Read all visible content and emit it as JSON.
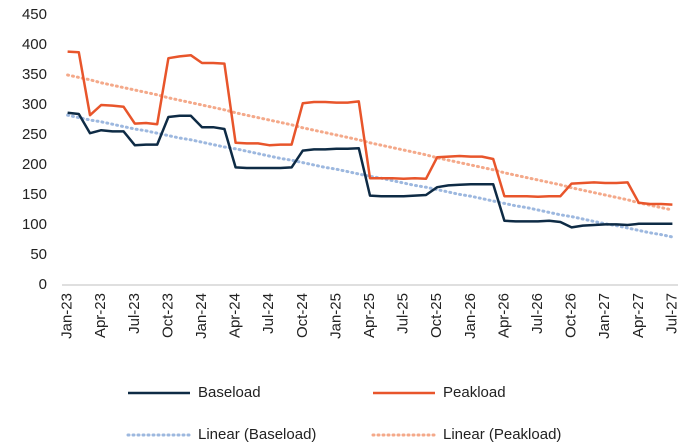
{
  "chart_data": {
    "type": "line",
    "categories": [
      "Jan-23",
      null,
      null,
      "Apr-23",
      null,
      null,
      "Jul-23",
      null,
      null,
      "Oct-23",
      null,
      null,
      "Jan-24",
      null,
      null,
      "Apr-24",
      null,
      null,
      "Jul-24",
      null,
      null,
      "Oct-24",
      null,
      null,
      "Jan-25",
      null,
      null,
      "Apr-25",
      null,
      null,
      "Jul-25",
      null,
      null,
      "Oct-25",
      null,
      null,
      "Jan-26",
      null,
      null,
      "Apr-26",
      null,
      null,
      "Jul-26",
      null,
      null,
      "Oct-26",
      null,
      null,
      "Jan-27",
      null,
      null,
      "Apr-27",
      null,
      null,
      "Jul-27"
    ],
    "series": [
      {
        "name": "Baseload",
        "color": "#0e2b45",
        "dashed": false,
        "values": [
          287,
          285,
          253,
          258,
          256,
          256,
          233,
          234,
          234,
          280,
          282,
          282,
          263,
          263,
          260,
          196,
          195,
          195,
          195,
          195,
          196,
          224,
          226,
          226,
          227,
          227,
          228,
          149,
          148,
          148,
          148,
          149,
          150,
          163,
          166,
          167,
          168,
          168,
          168,
          107,
          106,
          106,
          106,
          107,
          105,
          96,
          99,
          100,
          101,
          101,
          100,
          102,
          102,
          102,
          102
        ]
      },
      {
        "name": "Peakload",
        "color": "#e8552b",
        "dashed": false,
        "values": [
          389,
          388,
          283,
          300,
          299,
          297,
          269,
          270,
          268,
          378,
          381,
          383,
          370,
          370,
          369,
          237,
          236,
          236,
          233,
          234,
          234,
          303,
          305,
          305,
          304,
          304,
          306,
          178,
          178,
          178,
          177,
          178,
          177,
          213,
          214,
          215,
          214,
          214,
          210,
          148,
          148,
          148,
          147,
          148,
          148,
          169,
          170,
          171,
          170,
          170,
          171,
          137,
          135,
          135,
          134
        ]
      },
      {
        "name": "Linear (Baseload)",
        "color": "#9db8df",
        "dashed": true,
        "values": [
          283,
          279,
          275,
          272,
          268,
          264,
          260,
          257,
          253,
          249,
          245,
          242,
          238,
          234,
          230,
          227,
          223,
          219,
          215,
          211,
          208,
          204,
          200,
          196,
          193,
          189,
          185,
          181,
          178,
          174,
          170,
          166,
          163,
          159,
          155,
          151,
          148,
          144,
          140,
          136,
          132,
          129,
          125,
          121,
          117,
          114,
          110,
          106,
          102,
          99,
          95,
          91,
          87,
          84,
          80
        ]
      },
      {
        "name": "Linear (Peakload)",
        "color": "#f4a98a",
        "dashed": true,
        "values": [
          350,
          346,
          342,
          337,
          333,
          329,
          325,
          321,
          317,
          312,
          308,
          304,
          300,
          296,
          292,
          287,
          283,
          279,
          275,
          271,
          267,
          262,
          258,
          254,
          250,
          246,
          242,
          237,
          233,
          229,
          225,
          221,
          217,
          212,
          208,
          204,
          200,
          196,
          192,
          187,
          183,
          179,
          175,
          171,
          167,
          162,
          158,
          154,
          150,
          146,
          142,
          137,
          133,
          129,
          125
        ]
      }
    ],
    "ylim": [
      0,
      450
    ],
    "yticks": [
      0,
      50,
      100,
      150,
      200,
      250,
      300,
      350,
      400,
      450
    ],
    "grid": false
  }
}
